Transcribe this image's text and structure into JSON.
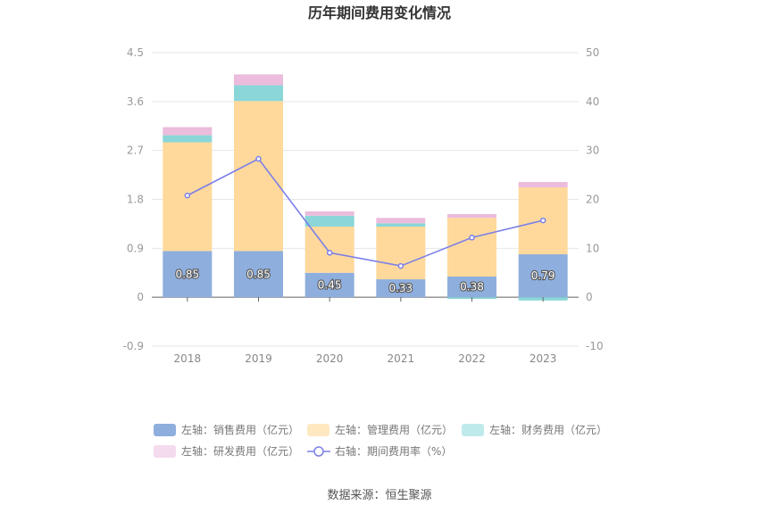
{
  "chart_data": {
    "type": "bar",
    "title": "历年期间费用变化情况",
    "categories": [
      "2018",
      "2019",
      "2020",
      "2021",
      "2022",
      "2023"
    ],
    "stacked": true,
    "y_left": {
      "ticks": [
        "4.5",
        "3.6",
        "2.7",
        "1.8",
        "0.9",
        "0",
        "-0.9"
      ],
      "ylim": [
        -0.9,
        4.5
      ]
    },
    "y_right": {
      "ticks": [
        "50",
        "40",
        "30",
        "20",
        "10",
        "0",
        "-10"
      ],
      "ylim": [
        -10,
        50
      ]
    },
    "series": [
      {
        "name": "左轴：销售费用（亿元）",
        "axis": "left",
        "color": "#8eaedd",
        "values": [
          0.85,
          0.85,
          0.45,
          0.33,
          0.38,
          0.79
        ]
      },
      {
        "name": "左轴：管理费用（亿元）",
        "axis": "left",
        "color": "#fed99b",
        "values": [
          2.0,
          2.76,
          0.85,
          0.97,
          1.08,
          1.23
        ]
      },
      {
        "name": "左轴：财务费用（亿元）",
        "axis": "left",
        "color": "#8ad6d8",
        "values": [
          0.13,
          0.29,
          0.2,
          0.06,
          -0.03,
          -0.06
        ]
      },
      {
        "name": "左轴：研发费用（亿元）",
        "axis": "left",
        "color": "#ebbcdc",
        "values": [
          0.15,
          0.2,
          0.08,
          0.1,
          0.07,
          0.1
        ]
      },
      {
        "name": "右轴：期间费用率（%）",
        "axis": "right",
        "type": "line",
        "color": "#7b7fe8",
        "values": [
          20.8,
          28.3,
          9.1,
          6.4,
          12.2,
          15.7
        ]
      }
    ],
    "data_labels": [
      "0.85",
      "0.85",
      "0.45",
      "0.33",
      "0.38",
      "0.79"
    ],
    "legend": "bottom"
  },
  "footer": {
    "source": "数据来源：恒生聚源"
  }
}
